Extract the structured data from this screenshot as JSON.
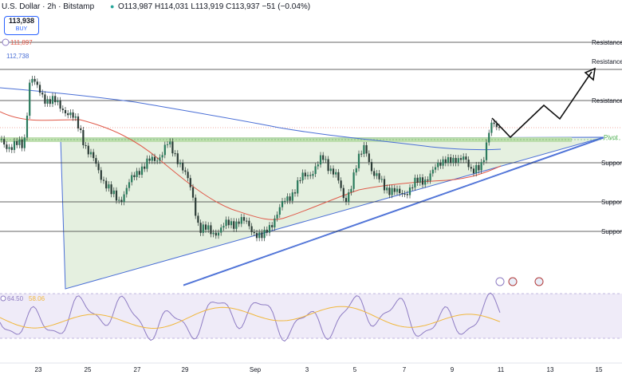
{
  "header": {
    "title": "U.S. Dollar · 2h · Bitstamp",
    "ohlc": "O113,987 H114,031 L113,919 C113,937 −51 (−0.04%)"
  },
  "price_badge": {
    "price": "113,938",
    "action": "BUY"
  },
  "markers": {
    "red_level": "111,897",
    "blue_level": "112,738"
  },
  "colors": {
    "candle_up": "#2a7a5c",
    "sma_blue": "#4a6fd6",
    "sma_red": "#e05a4a",
    "triangle_fill": "#dcebd6",
    "rsi_line": "#8e7cc3",
    "rsi_signal": "#f0b73c",
    "pivot": "#4caf50"
  },
  "chart_data": {
    "type": "candlestick",
    "x_ticks": [
      "23",
      "25",
      "27",
      "29",
      "Sep",
      "3",
      "5",
      "7",
      "9",
      "11",
      "13",
      "15"
    ],
    "levels": [
      {
        "name": "Resistance",
        "kind": "resistance"
      },
      {
        "name": "Resistance",
        "kind": "resistance"
      },
      {
        "name": "Resistance",
        "kind": "resistance"
      },
      {
        "name": "Pivot",
        "kind": "pivot"
      },
      {
        "name": "Support",
        "kind": "support"
      },
      {
        "name": "Support",
        "kind": "support"
      },
      {
        "name": "Support",
        "kind": "support"
      }
    ],
    "rsi": {
      "value": "64.50",
      "signal": "58.06"
    }
  }
}
